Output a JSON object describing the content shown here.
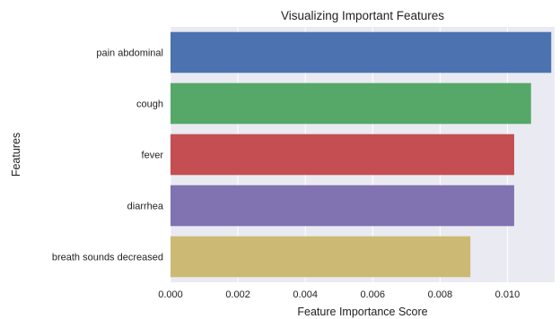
{
  "chart_data": {
    "type": "bar",
    "orientation": "horizontal",
    "title": "Visualizing Important Features",
    "xlabel": "Feature Importance Score",
    "ylabel": "Features",
    "categories": [
      "pain abdominal",
      "cough",
      "fever",
      "diarrhea",
      "breath sounds decreased"
    ],
    "values": [
      0.0113,
      0.0107,
      0.0102,
      0.0102,
      0.0089
    ],
    "colors": [
      "#4c72b0",
      "#55a868",
      "#c44e52",
      "#8172b2",
      "#ccb974"
    ],
    "xlim": [
      0,
      0.0114
    ],
    "xticks": [
      "0.000",
      "0.002",
      "0.004",
      "0.006",
      "0.008",
      "0.010"
    ],
    "xtick_values": [
      0,
      0.002,
      0.004,
      0.006,
      0.008,
      0.01
    ],
    "grid": true,
    "background": "#eaeaf2"
  }
}
